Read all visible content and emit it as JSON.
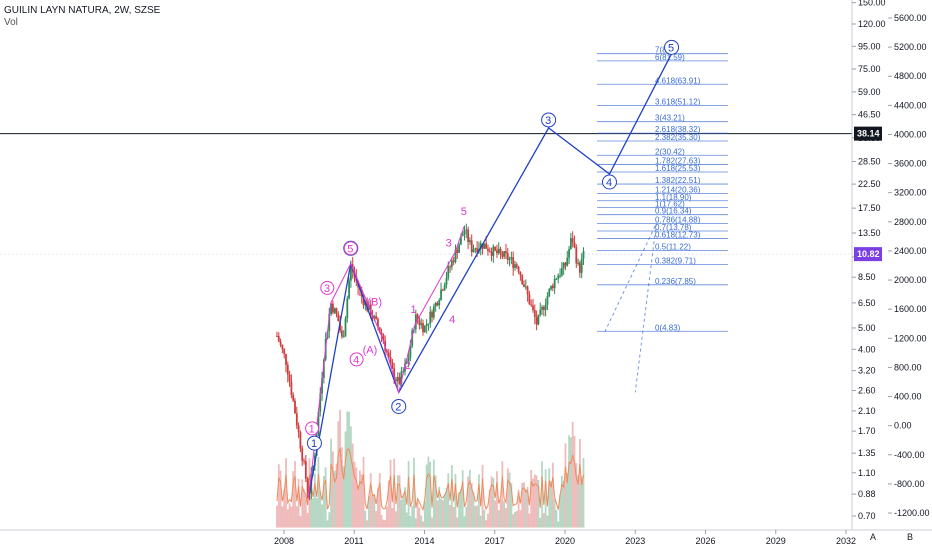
{
  "header": {
    "symbol_line": "GUILIN LAYN NATURA, 2W, SZSE",
    "indicator": "Vol"
  },
  "corner_buttons": {
    "auto": "A",
    "log": "B"
  },
  "colors": {
    "up_candle": "#2e8b57",
    "down_candle": "#d23b3b",
    "wave_primary": "#2040c8",
    "wave_minor": "#e03ad0",
    "fib": "#3a6bd4",
    "volume_ma": "#f08a5d"
  },
  "chart_data": {
    "type": "candlestick",
    "x_ticks": [
      "2008",
      "2011",
      "2014",
      "2017",
      "2020",
      "2023",
      "2026",
      "2029",
      "2032"
    ],
    "price_ticks": [
      "150.00",
      "120.00",
      "95.00",
      "75.00",
      "59.00",
      "46.50",
      "36.50",
      "28.50",
      "22.50",
      "17.50",
      "13.50",
      "10.50",
      "8.50",
      "6.50",
      "5.00",
      "4.00",
      "3.20",
      "2.60",
      "2.10",
      "1.70",
      "1.35",
      "1.10",
      "0.88",
      "0.70"
    ],
    "price_tick_values": [
      150,
      120,
      95,
      75,
      59,
      46.5,
      36.5,
      28.5,
      22.5,
      17.5,
      13.5,
      10.5,
      8.5,
      6.5,
      5,
      4,
      3.2,
      2.6,
      2.1,
      1.7,
      1.35,
      1.1,
      0.88,
      0.7
    ],
    "volume_ticks": [
      "5600.00",
      "5200.00",
      "4800.00",
      "4400.00",
      "4000.00",
      "3600.00",
      "3200.00",
      "2800.00",
      "2400.00",
      "2000.00",
      "1600.00",
      "1200.00",
      "800.00",
      "400.00",
      "0.00",
      "-400.00",
      "-800.00",
      "-1200.00"
    ],
    "price_scale": "log",
    "crosshair_price": "38.14",
    "last_price": "10.82",
    "fib_extension": [
      {
        "level": "7",
        "value": "88",
        "label": "7(88)"
      },
      {
        "level": "6",
        "value": "81.59",
        "label": "6(81.59)"
      },
      {
        "level": "4.618",
        "value": "63.91",
        "label": "4.618(63.91)"
      },
      {
        "level": "3.618",
        "value": "51.12",
        "label": "3.618(51.12)"
      },
      {
        "level": "3",
        "value": "43.21",
        "label": "3(43.21)"
      },
      {
        "level": "2.618",
        "value": "38.32",
        "label": "2.618(38.32)"
      },
      {
        "level": "2.382",
        "value": "35.30",
        "label": "2.382(35.30)"
      },
      {
        "level": "2",
        "value": "30.42",
        "label": "2(30.42)"
      },
      {
        "level": "1.782",
        "value": "27.63",
        "label": "1.782(27.63)"
      },
      {
        "level": "1.618",
        "value": "25.53",
        "label": "1.618(25.53)"
      },
      {
        "level": "1.382",
        "value": "22.51",
        "label": "1.382(22.51)"
      },
      {
        "level": "1.214",
        "value": "20.36",
        "label": "1.214(20.36)"
      },
      {
        "level": "1.1",
        "value": "18.90",
        "label": "1.1(18.90)"
      },
      {
        "level": "1",
        "value": "17.62",
        "label": "1(17.62)"
      },
      {
        "level": "0.9",
        "value": "16.34",
        "label": "0.9(16.34)"
      },
      {
        "level": "0.786",
        "value": "14.88",
        "label": "0.786(14.88)"
      },
      {
        "level": "0.7",
        "value": "13.78",
        "label": "0.7(13.78)"
      },
      {
        "level": "0.618",
        "value": "12.73",
        "label": "0.618(12.73)"
      },
      {
        "level": "0.5",
        "value": "11.22",
        "label": "0.5(11.22)"
      },
      {
        "level": "0.382",
        "value": "9.71",
        "label": "0.382(9.71)"
      },
      {
        "level": "0.236",
        "value": "7.85",
        "label": "0.236(7.85)"
      },
      {
        "level": "0",
        "value": "4.83",
        "label": "0(4.83)"
      }
    ],
    "wave_primary_path": [
      {
        "date": 2009.05,
        "price": 0.85
      },
      {
        "date": 2010.85,
        "price": 9.8
      },
      {
        "date": 2012.9,
        "price": 2.55
      },
      {
        "date": 2019.3,
        "price": 40.5
      },
      {
        "date": 2021.9,
        "price": 25.0
      },
      {
        "date": 2024.55,
        "price": 88
      }
    ],
    "wave_primary_labels": [
      {
        "text": "1",
        "date": 2009.3,
        "price": 1.5
      },
      {
        "text": "1",
        "date": 2010.85,
        "price": 11.5
      },
      {
        "text": "2",
        "date": 2012.9,
        "price": 2.2
      },
      {
        "text": "3",
        "date": 2019.3,
        "price": 44
      },
      {
        "text": "4",
        "date": 2021.9,
        "price": 23
      },
      {
        "text": "5",
        "date": 2024.55,
        "price": 94
      }
    ],
    "wave_minor_path": [
      {
        "date": 2009.05,
        "price": 0.85
      },
      {
        "date": 2010.0,
        "price": 6.5
      },
      {
        "date": 2010.85,
        "price": 9.8
      },
      {
        "date": 2012.2,
        "price": 4.5
      },
      {
        "date": 2012.9,
        "price": 2.55
      },
      {
        "date": 2013.6,
        "price": 5.2
      },
      {
        "date": 2015.3,
        "price": 11.0
      },
      {
        "date": 2015.7,
        "price": 14.5
      }
    ],
    "wave_minor_labels": [
      {
        "text": "1",
        "date": 2009.2,
        "price": 1.75,
        "circled": true
      },
      {
        "text": "3",
        "date": 2009.85,
        "price": 7.6,
        "circled": true
      },
      {
        "text": "4",
        "date": 2011.1,
        "price": 3.6,
        "circled": true
      },
      {
        "text": "5",
        "date": 2010.85,
        "price": 11.5,
        "circled": true
      },
      {
        "text": "(B)",
        "date": 2011.9,
        "price": 6.6
      },
      {
        "text": "(A)",
        "date": 2011.7,
        "price": 4.0
      },
      {
        "text": "1",
        "date": 2013.55,
        "price": 6.1
      },
      {
        "text": "2",
        "date": 2013.3,
        "price": 3.4
      },
      {
        "text": "3",
        "date": 2015.05,
        "price": 12.2
      },
      {
        "text": "4",
        "date": 2015.2,
        "price": 5.5
      },
      {
        "text": "5",
        "date": 2015.7,
        "price": 17.0
      }
    ],
    "dashed_projection": [
      {
        "date": 2021.7,
        "price": 4.8
      },
      {
        "date": 2023.9,
        "price": 14.9
      },
      {
        "date": 2023.0,
        "price": 2.55
      }
    ]
  }
}
